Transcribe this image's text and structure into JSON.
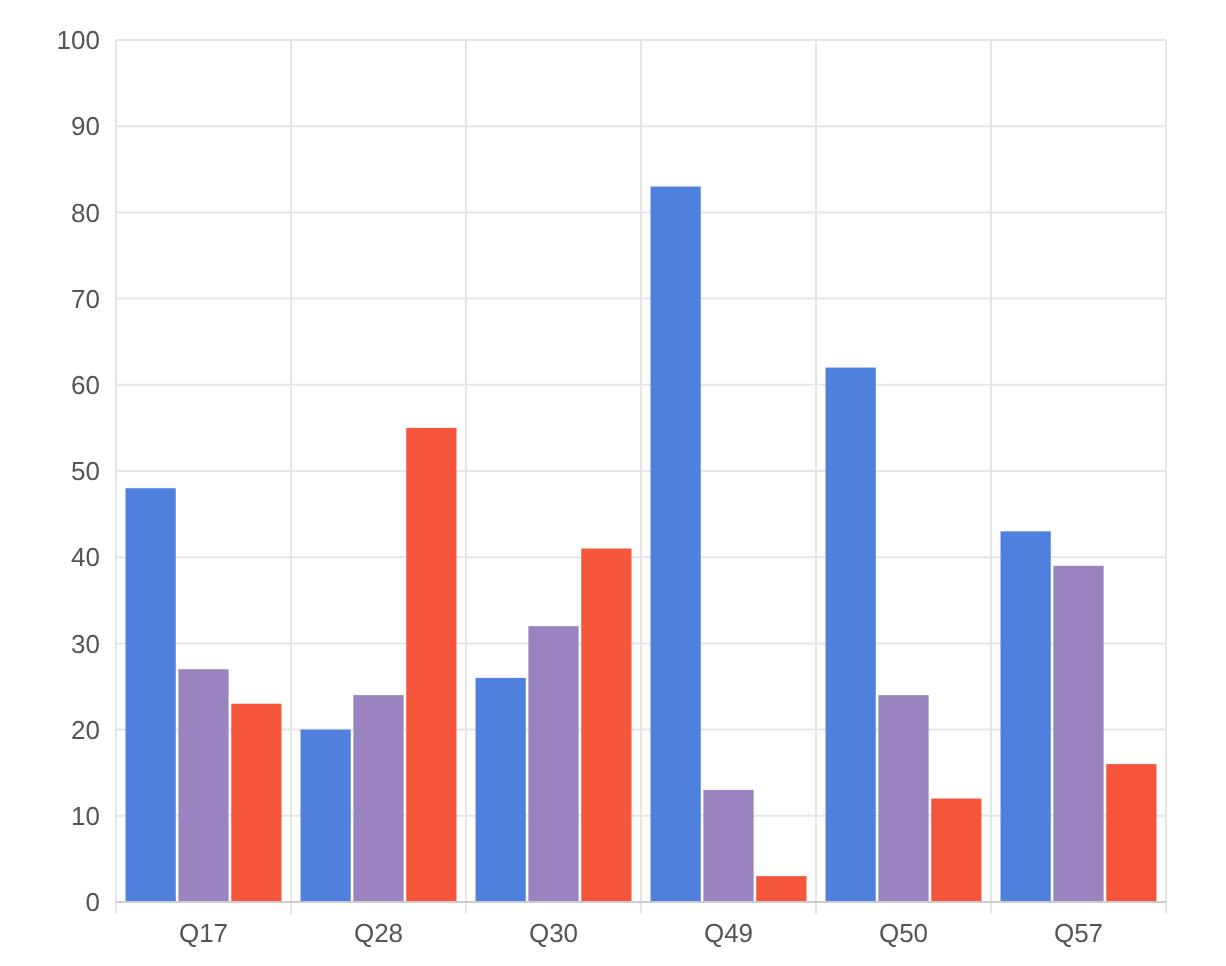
{
  "chart_data": {
    "type": "bar",
    "categories": [
      "Q17",
      "Q28",
      "Q30",
      "Q49",
      "Q50",
      "Q57"
    ],
    "series": [
      {
        "color": "#4f80de",
        "values": [
          48,
          20,
          26,
          83,
          62,
          43
        ]
      },
      {
        "color": "#9a84c0",
        "values": [
          27,
          24,
          32,
          13,
          24,
          39
        ]
      },
      {
        "color": "#f5553a",
        "values": [
          23,
          55,
          41,
          3,
          12,
          16
        ]
      }
    ],
    "ylim": [
      0,
      100
    ],
    "yticks": [
      0,
      10,
      20,
      30,
      40,
      50,
      60,
      70,
      80,
      90,
      100
    ],
    "grid": true
  }
}
